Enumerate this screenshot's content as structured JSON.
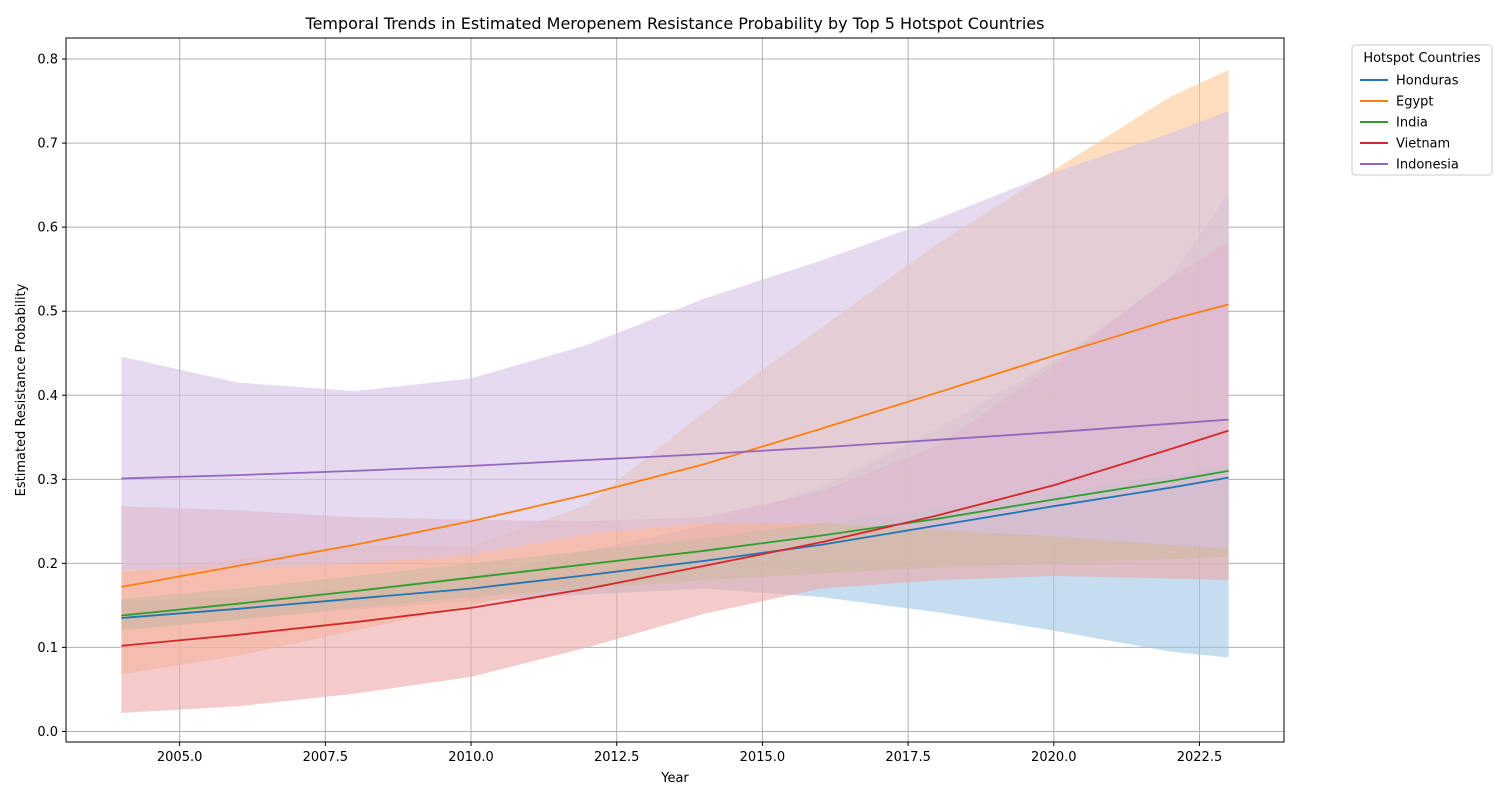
{
  "chart_data": {
    "type": "line",
    "title": "Temporal Trends in Estimated Meropenem Resistance Probability by Top 5 Hotspot Countries",
    "xlabel": "Year",
    "ylabel": "Estimated Resistance Probability",
    "xlim": [
      2003.05,
      2023.95
    ],
    "ylim": [
      -0.0125,
      0.825
    ],
    "x_ticks": [
      2005.0,
      2007.5,
      2010.0,
      2012.5,
      2015.0,
      2017.5,
      2020.0,
      2022.5
    ],
    "x_tick_labels": [
      "2005.0",
      "2007.5",
      "2010.0",
      "2012.5",
      "2015.0",
      "2017.5",
      "2020.0",
      "2022.5"
    ],
    "y_ticks": [
      0.0,
      0.1,
      0.2,
      0.3,
      0.4,
      0.5,
      0.6,
      0.7,
      0.8
    ],
    "y_tick_labels": [
      "0.0",
      "0.1",
      "0.2",
      "0.3",
      "0.4",
      "0.5",
      "0.6",
      "0.7",
      "0.8"
    ],
    "grid": true,
    "legend": {
      "title": "Hotspot Countries",
      "placement": "outside-top-right"
    },
    "x": [
      2004,
      2006,
      2008,
      2010,
      2012,
      2014,
      2016,
      2018,
      2020,
      2022,
      2023
    ],
    "series": [
      {
        "name": "Honduras",
        "color": "#1f77b4",
        "band_color": "#9ec6e4",
        "values": [
          0.135,
          0.146,
          0.158,
          0.17,
          0.186,
          0.203,
          0.222,
          0.245,
          0.268,
          0.29,
          0.302
        ],
        "lower": [
          0.122,
          0.133,
          0.145,
          0.155,
          0.163,
          0.17,
          0.16,
          0.142,
          0.12,
          0.095,
          0.088
        ],
        "upper": [
          0.155,
          0.16,
          0.17,
          0.185,
          0.215,
          0.245,
          0.29,
          0.36,
          0.44,
          0.54,
          0.64
        ]
      },
      {
        "name": "Egypt",
        "color": "#ff7f0e",
        "band_color": "#ffc894",
        "values": [
          0.172,
          0.197,
          0.222,
          0.25,
          0.282,
          0.318,
          0.36,
          0.403,
          0.447,
          0.49,
          0.508
        ],
        "lower": [
          0.068,
          0.09,
          0.12,
          0.15,
          0.18,
          0.215,
          0.245,
          0.265,
          0.285,
          0.305,
          0.315
        ],
        "upper": [
          0.19,
          0.205,
          0.222,
          0.22,
          0.27,
          0.38,
          0.48,
          0.58,
          0.668,
          0.755,
          0.787
        ]
      },
      {
        "name": "India",
        "color": "#2ca02c",
        "band_color": "#9fd69f",
        "values": [
          0.138,
          0.152,
          0.167,
          0.183,
          0.199,
          0.215,
          0.233,
          0.253,
          0.276,
          0.298,
          0.31
        ],
        "lower": [
          0.12,
          0.133,
          0.147,
          0.16,
          0.17,
          0.18,
          0.188,
          0.195,
          0.2,
          0.205,
          0.208
        ],
        "upper": [
          0.158,
          0.17,
          0.185,
          0.2,
          0.215,
          0.23,
          0.248,
          0.265,
          0.285,
          0.305,
          0.318
        ]
      },
      {
        "name": "Vietnam",
        "color": "#d62728",
        "band_color": "#eea6a6",
        "values": [
          0.102,
          0.115,
          0.13,
          0.147,
          0.17,
          0.197,
          0.225,
          0.257,
          0.293,
          0.336,
          0.358
        ],
        "lower": [
          0.022,
          0.03,
          0.045,
          0.065,
          0.1,
          0.14,
          0.17,
          0.18,
          0.185,
          0.182,
          0.18
        ],
        "upper": [
          0.268,
          0.263,
          0.255,
          0.252,
          0.25,
          0.255,
          0.285,
          0.34,
          0.435,
          0.54,
          0.582
        ]
      },
      {
        "name": "Indonesia",
        "color": "#9467bd",
        "band_color": "#d4c2e4",
        "values": [
          0.301,
          0.305,
          0.31,
          0.316,
          0.323,
          0.33,
          0.338,
          0.347,
          0.356,
          0.366,
          0.371
        ],
        "lower": [
          0.192,
          0.195,
          0.2,
          0.21,
          0.235,
          0.248,
          0.248,
          0.24,
          0.232,
          0.222,
          0.218
        ],
        "upper": [
          0.446,
          0.415,
          0.405,
          0.42,
          0.46,
          0.515,
          0.56,
          0.61,
          0.665,
          0.712,
          0.738
        ]
      }
    ]
  }
}
